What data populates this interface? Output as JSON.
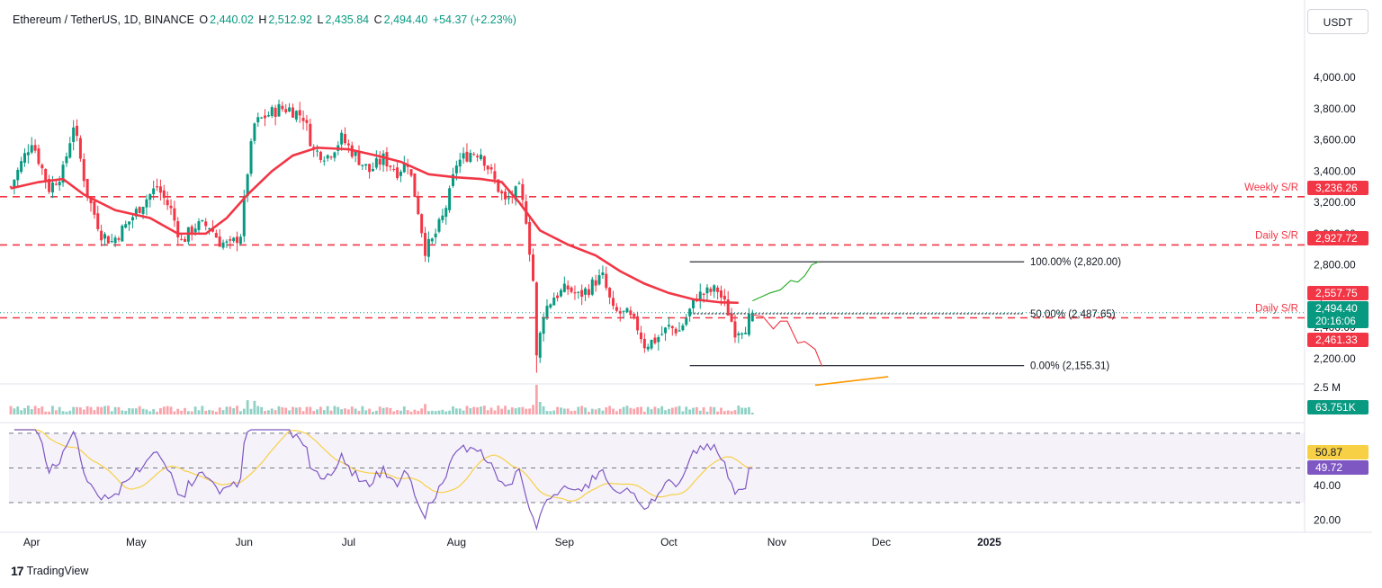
{
  "header": {
    "symbol": "Ethereum / TetherUS, 1D, BINANCE",
    "open_label": "O",
    "open": "2,440.02",
    "high_label": "H",
    "high": "2,512.92",
    "low_label": "L",
    "low": "2,435.84",
    "close_label": "C",
    "close": "2,494.40",
    "change": "+54.37 (+2.23%)"
  },
  "currency_button": "USDT",
  "branding": "TradingView",
  "colors": {
    "up": "#089981",
    "down": "#f23645",
    "ma": "#f23645",
    "rsi": "#7e57c2",
    "rsi_ma": "#f7d046",
    "fib": "#131722",
    "projection_up": "#22ab22",
    "projection_down": "#f23645",
    "trendline": "#ff9800"
  },
  "chart_data": [
    {
      "type": "candlestick",
      "title": "Ethereum / TetherUS, 1D, BINANCE",
      "x_tick_labels": [
        "Apr",
        "May",
        "Jun",
        "Jul",
        "Aug",
        "Sep",
        "Oct",
        "Nov",
        "Dec",
        "2025"
      ],
      "x_range": [
        "2024-03-26",
        "2025-01-08"
      ],
      "ylim": [
        2050,
        4150
      ],
      "y_tick_labels": [
        "2,200.00",
        "2,400.00",
        "2,600.00",
        "2,800.00",
        "3,000.00",
        "3,200.00",
        "3,400.00",
        "3,600.00",
        "3,800.00",
        "4,000.00"
      ],
      "y_ticks": [
        2200,
        2400,
        2600,
        2800,
        3000,
        3200,
        3400,
        3600,
        3800,
        4000
      ],
      "grid": false,
      "price_path": [
        [
          0,
          3300
        ],
        [
          6,
          3600
        ],
        [
          11,
          3290
        ],
        [
          15,
          3400
        ],
        [
          18,
          3700
        ],
        [
          22,
          3250
        ],
        [
          26,
          3000
        ],
        [
          29,
          2950
        ],
        [
          33,
          3050
        ],
        [
          38,
          3200
        ],
        [
          42,
          3300
        ],
        [
          46,
          3150
        ],
        [
          49,
          2950
        ],
        [
          53,
          3050
        ],
        [
          57,
          3050
        ],
        [
          60,
          2950
        ],
        [
          63,
          2920
        ],
        [
          66,
          3000
        ],
        [
          68,
          3400
        ],
        [
          70,
          3700
        ],
        [
          73,
          3750
        ],
        [
          77,
          3800
        ],
        [
          80,
          3800
        ],
        [
          84,
          3750
        ],
        [
          87,
          3530
        ],
        [
          91,
          3500
        ],
        [
          95,
          3610
        ],
        [
          99,
          3500
        ],
        [
          103,
          3400
        ],
        [
          107,
          3480
        ],
        [
          111,
          3400
        ],
        [
          114,
          3460
        ],
        [
          117,
          3150
        ],
        [
          119,
          2900
        ],
        [
          121,
          2950
        ],
        [
          124,
          3100
        ],
        [
          126,
          3250
        ],
        [
          128,
          3450
        ],
        [
          132,
          3520
        ],
        [
          135,
          3520
        ],
        [
          138,
          3380
        ],
        [
          142,
          3200
        ],
        [
          146,
          3280
        ],
        [
          148,
          3100
        ],
        [
          150,
          2700
        ],
        [
          151,
          2200
        ],
        [
          153,
          2500
        ],
        [
          156,
          2600
        ],
        [
          160,
          2650
        ],
        [
          163,
          2600
        ],
        [
          166,
          2650
        ],
        [
          168,
          2700
        ],
        [
          170,
          2720
        ],
        [
          173,
          2500
        ],
        [
          177,
          2480
        ],
        [
          180,
          2400
        ],
        [
          182,
          2290
        ],
        [
          185,
          2320
        ],
        [
          189,
          2400
        ],
        [
          192,
          2380
        ],
        [
          194,
          2460
        ],
        [
          197,
          2600
        ],
        [
          201,
          2630
        ],
        [
          203,
          2640
        ],
        [
          206,
          2500
        ],
        [
          208,
          2380
        ],
        [
          211,
          2410
        ],
        [
          213,
          2494
        ]
      ],
      "series_ma": {
        "name": "",
        "points": [
          [
            0,
            3290
          ],
          [
            8,
            3330
          ],
          [
            15,
            3350
          ],
          [
            21,
            3250
          ],
          [
            30,
            3150
          ],
          [
            40,
            3100
          ],
          [
            48,
            3000
          ],
          [
            56,
            3000
          ],
          [
            62,
            3100
          ],
          [
            68,
            3250
          ],
          [
            75,
            3400
          ],
          [
            81,
            3500
          ],
          [
            88,
            3550
          ],
          [
            97,
            3540
          ],
          [
            105,
            3500
          ],
          [
            112,
            3460
          ],
          [
            120,
            3380
          ],
          [
            128,
            3360
          ],
          [
            135,
            3350
          ],
          [
            141,
            3330
          ],
          [
            146,
            3200
          ],
          [
            152,
            3020
          ],
          [
            160,
            2930
          ],
          [
            168,
            2860
          ],
          [
            175,
            2760
          ],
          [
            182,
            2680
          ],
          [
            189,
            2620
          ],
          [
            196,
            2580
          ],
          [
            204,
            2560
          ],
          [
            209,
            2557.75
          ]
        ]
      },
      "horizontal_levels": [
        {
          "label": "Weekly S/R",
          "value": "3,236.26",
          "price": 3236.26,
          "style": "dashed-red"
        },
        {
          "label": "Daily S/R",
          "value": "2,927.72",
          "price": 2927.72,
          "style": "dashed-red"
        },
        {
          "label": "Daily S/R",
          "value": "2,461.33",
          "price": 2461.33,
          "style": "dashed-red"
        }
      ],
      "fibonacci": [
        {
          "text": "100.00% (2,820.00)",
          "price": 2820.0
        },
        {
          "text": "50.00% (2,487.65)",
          "price": 2487.65
        },
        {
          "text": "0.00% (2,155.31)",
          "price": 2155.31
        }
      ],
      "price_badges": [
        {
          "value": "3,236.26",
          "price": 3236.26,
          "color": "#f23645"
        },
        {
          "value": "2,927.72",
          "price": 2927.72,
          "color": "#f23645"
        },
        {
          "value": "2,557.75",
          "price": 2557.75,
          "color": "#f23645"
        },
        {
          "value": "2,494.40",
          "price": 2494.4,
          "color": "#089981",
          "sub": "20:16:06"
        },
        {
          "value": "2,461.33",
          "price": 2461.33,
          "color": "#f23645"
        }
      ],
      "projection_up": [
        [
          213,
          2570
        ],
        [
          218,
          2620
        ],
        [
          221,
          2640
        ],
        [
          224,
          2700
        ],
        [
          226,
          2690
        ],
        [
          228,
          2730
        ],
        [
          230,
          2800
        ],
        [
          232,
          2820
        ]
      ],
      "projection_down": [
        [
          213,
          2480
        ],
        [
          216,
          2470
        ],
        [
          219,
          2390
        ],
        [
          221,
          2440
        ],
        [
          223,
          2440
        ],
        [
          226,
          2300
        ],
        [
          228,
          2310
        ],
        [
          231,
          2260
        ],
        [
          233,
          2150
        ]
      ],
      "trendline": [
        [
          231,
          2030
        ],
        [
          252,
          2085
        ]
      ],
      "current_price": 2494.4
    },
    {
      "type": "bar",
      "title": "Volume",
      "y_tick_labels": [
        "2.5 M"
      ],
      "last_value": "63.751K",
      "colors_by_candle_direction": true
    },
    {
      "type": "line",
      "title": "RSI",
      "ylim": [
        15,
        72
      ],
      "y_tick_labels": [
        "20.00",
        "40.00"
      ],
      "y_ticks": [
        20,
        40
      ],
      "band": [
        30,
        70
      ],
      "midline": 50,
      "rsi_value": "49.72",
      "rsi_ma_value": "50.87"
    }
  ]
}
